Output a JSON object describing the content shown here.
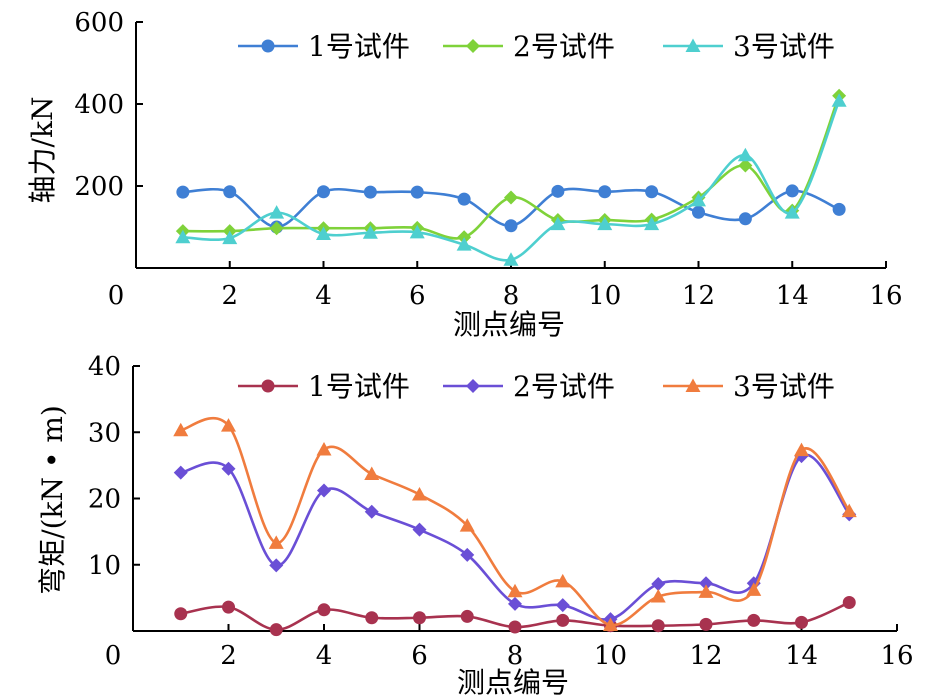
{
  "chart_data": [
    {
      "type": "line",
      "smooth": true,
      "title": "",
      "xlabel": "测点编号",
      "ylabel": "轴力/kN",
      "xlim": [
        0,
        16
      ],
      "ylim": [
        0,
        600
      ],
      "xticks": [
        0,
        2,
        4,
        6,
        8,
        10,
        12,
        14,
        16
      ],
      "yticks": [
        200,
        400,
        600
      ],
      "grid": false,
      "legend_position": "top",
      "x": [
        1,
        2,
        3,
        4,
        5,
        6,
        7,
        8,
        9,
        10,
        11,
        12,
        13,
        14,
        15
      ],
      "series": [
        {
          "name": "1号试件",
          "color": "#3f7fd4",
          "marker": "circle",
          "values": [
            185,
            186,
            100,
            186,
            185,
            185,
            168,
            103,
            187,
            186,
            186,
            136,
            120,
            188,
            143
          ]
        },
        {
          "name": "2号试件",
          "color": "#7fd23a",
          "marker": "diamond",
          "values": [
            90,
            90,
            97,
            97,
            97,
            98,
            75,
            172,
            117,
            117,
            118,
            172,
            250,
            140,
            420
          ]
        },
        {
          "name": "3号试件",
          "color": "#4ecfcf",
          "marker": "triangle",
          "values": [
            75,
            73,
            135,
            83,
            86,
            87,
            57,
            20,
            107,
            107,
            107,
            165,
            275,
            135,
            408
          ]
        }
      ]
    },
    {
      "type": "line",
      "smooth": true,
      "title": "",
      "xlabel": "测点编号",
      "ylabel": "弯矩/(kN • m)",
      "xlim": [
        0,
        16
      ],
      "ylim": [
        0,
        40
      ],
      "xticks": [
        0,
        2,
        4,
        6,
        8,
        10,
        12,
        14,
        16
      ],
      "yticks": [
        10,
        20,
        30,
        40
      ],
      "grid": false,
      "legend_position": "top",
      "x": [
        1,
        2,
        3,
        4,
        5,
        6,
        7,
        8,
        9,
        10,
        11,
        12,
        13,
        14,
        15
      ],
      "series": [
        {
          "name": "1号试件",
          "color": "#a8324f",
          "marker": "circle",
          "values": [
            2.6,
            3.6,
            0.2,
            3.2,
            2.0,
            2.0,
            2.2,
            0.6,
            1.6,
            0.8,
            0.8,
            1.0,
            1.6,
            1.3,
            4.3
          ]
        },
        {
          "name": "2号试件",
          "color": "#6a4fd6",
          "marker": "diamond",
          "values": [
            23.9,
            24.5,
            9.9,
            21.2,
            18.0,
            15.3,
            11.5,
            4.1,
            3.9,
            1.8,
            7.1,
            7.2,
            7.2,
            26.4,
            17.6
          ]
        },
        {
          "name": "3号试件",
          "color": "#f07c3e",
          "marker": "triangle",
          "values": [
            30.3,
            31.0,
            13.3,
            27.4,
            23.7,
            20.6,
            15.9,
            6.0,
            7.5,
            0.9,
            5.2,
            5.9,
            6.2,
            27.3,
            18.1
          ]
        }
      ]
    }
  ]
}
